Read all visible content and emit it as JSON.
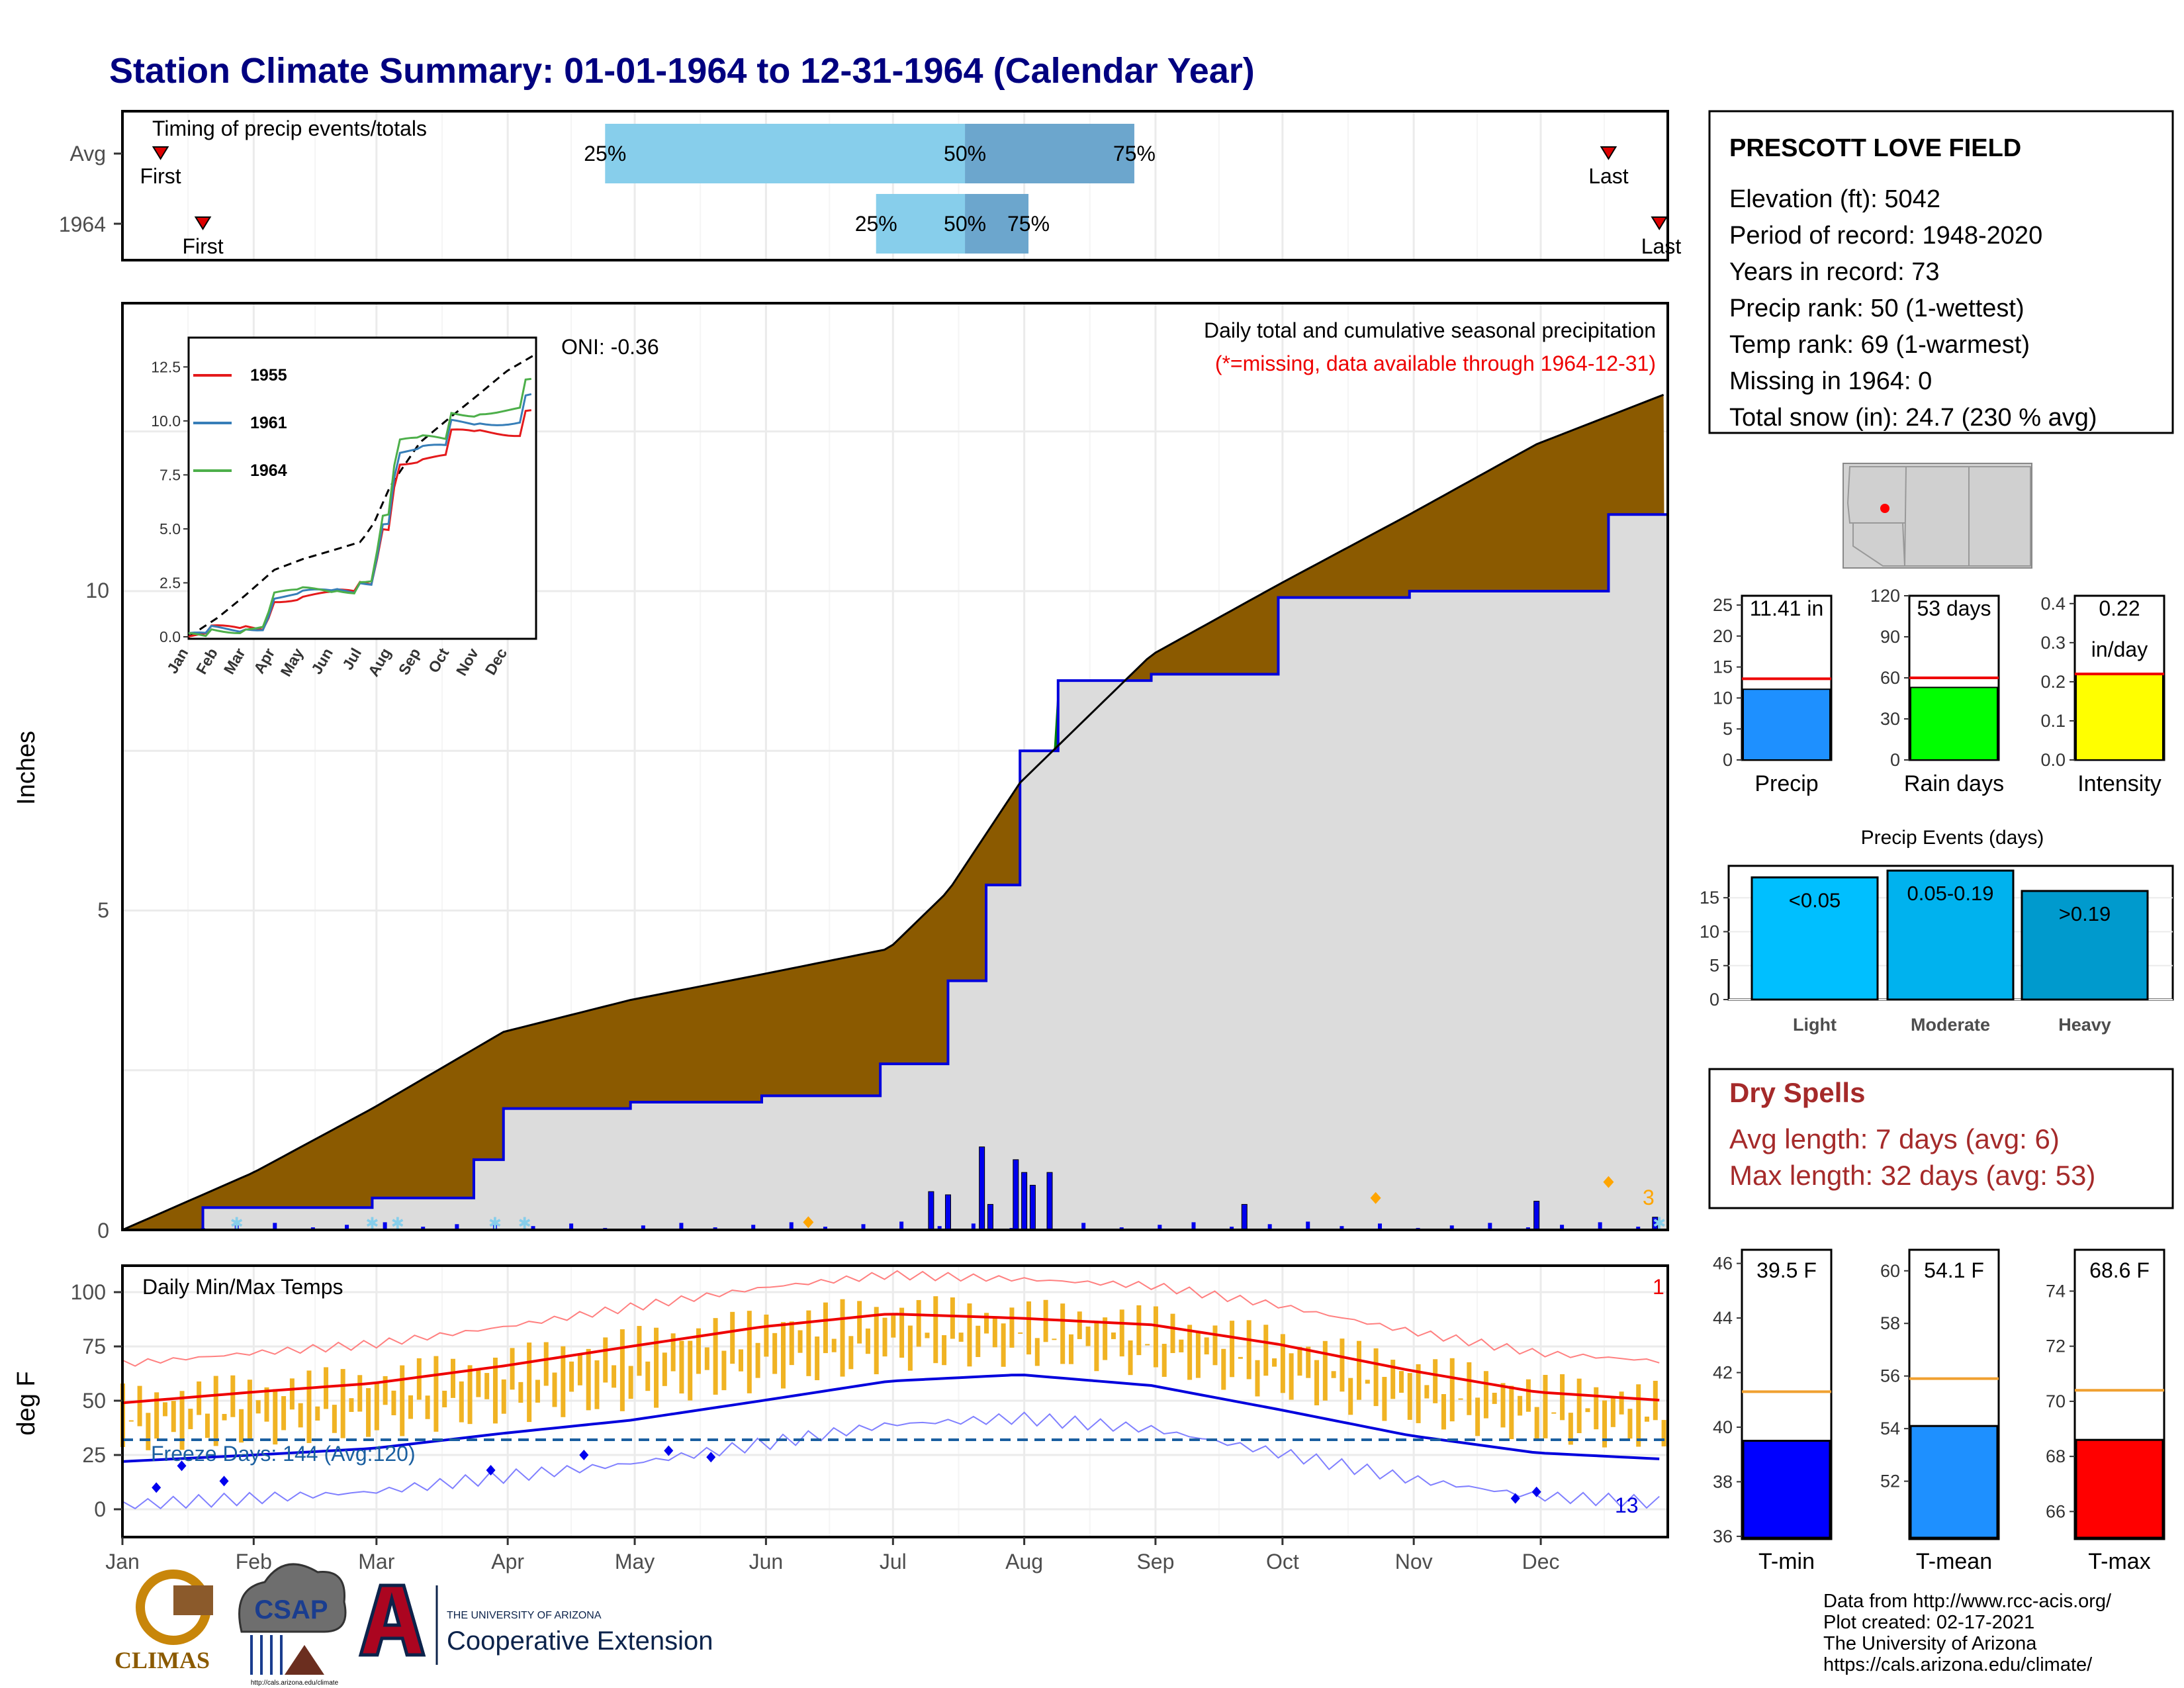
{
  "title": "Station Climate Summary: 01-01-1964 to 12-31-1964 (Calendar Year)",
  "timing": {
    "label": "Timing of precip events/totals",
    "rows": [
      {
        "name": "Avg",
        "first_label": "First",
        "last_label": "Last",
        "first_doy": 10,
        "last_doy": 352,
        "p25_doy": 115,
        "p50_doy": 200,
        "p75_doy": 240
      },
      {
        "name": "1964",
        "first_label": "First",
        "last_label": "Last",
        "first_doy": 20,
        "last_doy": 364,
        "p25_doy": 179,
        "p50_doy": 200,
        "p75_doy": 215
      }
    ],
    "pct_labels": [
      "25%",
      "50%",
      "75%"
    ],
    "colors": {
      "light": "#87ceeb",
      "dark": "#6ca6cd",
      "marker": "#dd0000"
    }
  },
  "station": {
    "name": "PRESCOTT LOVE FIELD",
    "lines": [
      "Elevation (ft): 5042",
      "Period of record: 1948-2020",
      "Years in record: 73",
      "Precip rank: 50 (1-wettest)",
      "Temp rank: 69 (1-warmest)",
      "Missing in 1964: 0",
      "Total snow (in): 24.7 (230 % avg)"
    ]
  },
  "precip_panel": {
    "title": "Daily total and cumulative seasonal precipitation",
    "subtitle": "(*=missing, data available through 1964-12-31)",
    "oni": "ONI: -0.36",
    "ylabel": "Inches",
    "yticks": [
      "0",
      "5",
      "10"
    ],
    "snow_count": "3",
    "colors": {
      "deficit": "#8b5a00",
      "surplus": "#008000",
      "observed": "#dcdcdc",
      "obs_line": "#0000dd",
      "bars": "#0000ee"
    }
  },
  "inset": {
    "yticks": [
      "0.0",
      "2.5",
      "5.0",
      "7.5",
      "10.0",
      "12.5"
    ],
    "months": [
      "Jan",
      "Feb",
      "Mar",
      "Apr",
      "May",
      "Jun",
      "Jul",
      "Aug",
      "Sep",
      "Oct",
      "Nov",
      "Dec"
    ],
    "legend": [
      {
        "name": "1955",
        "color": "#e41a1c"
      },
      {
        "name": "1961",
        "color": "#377eb8"
      },
      {
        "name": "1964",
        "color": "#4daf4a"
      }
    ]
  },
  "months": [
    "Jan",
    "Feb",
    "Mar",
    "Apr",
    "May",
    "Jun",
    "Jul",
    "Aug",
    "Sep",
    "Oct",
    "Nov",
    "Dec"
  ],
  "temp_panel": {
    "title": "Daily Min/Max Temps",
    "ylabel": "deg F",
    "yticks": [
      "0",
      "25",
      "50",
      "75",
      "100"
    ],
    "freeze": "Freeze Days: 144 (Avg:120)",
    "count_hot": "1",
    "count_cold": "13",
    "colors": {
      "range": "#f0b323",
      "max_avg": "#ee0000",
      "min_avg": "#0000dd",
      "freeze_line": "#1a5fa0"
    }
  },
  "precip_bars": {
    "panels": [
      {
        "label": "Precip",
        "value_label": "11.41 in",
        "value": 11.41,
        "avg": 13.1,
        "ymax": 26.5,
        "ticks": [
          "0",
          "5",
          "10",
          "15",
          "20",
          "25"
        ],
        "color": "#1e90ff"
      },
      {
        "label": "Rain days",
        "value_label": "53 days",
        "value": 53,
        "avg": 60,
        "ymax": 120,
        "ticks": [
          "0",
          "30",
          "60",
          "90",
          "120"
        ],
        "color": "#00ff00"
      },
      {
        "label": "Intensity",
        "value_label": "0.22",
        "value_label2": "in/day",
        "value": 0.22,
        "avg": 0.22,
        "ymax": 0.42,
        "ticks": [
          "0.0",
          "0.1",
          "0.2",
          "0.3",
          "0.4"
        ],
        "color": "#ffff00"
      }
    ]
  },
  "events": {
    "title": "Precip Events (days)",
    "categories": [
      "Light",
      "Moderate",
      "Heavy"
    ],
    "bar_labels": [
      "<0.05",
      "0.05-0.19",
      ">0.19"
    ],
    "values": [
      18,
      19,
      16
    ],
    "ticks": [
      "0",
      "5",
      "10",
      "15"
    ],
    "colors": [
      "#00bfff",
      "#00b2ee",
      "#009acd"
    ]
  },
  "dry_spells": {
    "title": "Dry Spells",
    "lines": [
      "Avg length: 7 days (avg: 6)",
      "Max length: 32 days (avg: 53)"
    ],
    "color": "#a52a2a"
  },
  "temp_bars": {
    "panels": [
      {
        "label": "T-min",
        "value_label": "39.5 F",
        "value": 39.5,
        "avg": 41.3,
        "ymin": 35.9,
        "ymax": 46.5,
        "ticks": [
          "36",
          "38",
          "40",
          "42",
          "44",
          "46"
        ],
        "color": "#0000ff"
      },
      {
        "label": "T-mean",
        "value_label": "54.1 F",
        "value": 54.1,
        "avg": 55.9,
        "ymin": 49.8,
        "ymax": 60.8,
        "ticks": [
          "52",
          "54",
          "56",
          "58",
          "60"
        ],
        "color": "#1e90ff"
      },
      {
        "label": "T-max",
        "value_label": "68.6 F",
        "value": 68.6,
        "avg": 70.4,
        "ymin": 65.0,
        "ymax": 75.5,
        "ticks": [
          "66",
          "68",
          "70",
          "72",
          "74"
        ],
        "color": "#ff0000"
      }
    ],
    "avg_color": "#f0a030"
  },
  "footer": {
    "lines": [
      "Data from http://www.rcc-acis.org/",
      "Plot created: 02-17-2021",
      "The University of Arizona",
      "https://cals.arizona.edu/climate/"
    ]
  },
  "logos": {
    "climas": "CLIMAS",
    "csap": "CSAP",
    "csap_url": "http://cals.arizona.edu/climate",
    "ua_small": "THE UNIVERSITY OF ARIZONA",
    "ua_big": "Cooperative Extension"
  },
  "chart_data": [
    {
      "type": "area",
      "title": "Daily total and cumulative seasonal precipitation",
      "ylabel": "Inches",
      "ylim": [
        0,
        13
      ],
      "x_unit": "day of year 1964",
      "average_cumulative": {
        "x": [
          1,
          32,
          60,
          91,
          121,
          152,
          182,
          196,
          213,
          244,
          274,
          305,
          335,
          366
        ],
        "y": [
          0,
          0.9,
          1.9,
          3.1,
          3.6,
          4.0,
          4.4,
          5.3,
          7.0,
          9.0,
          10.1,
          11.2,
          12.3,
          13.1
        ]
      },
      "observed_cumulative": {
        "x": [
          1,
          20,
          60,
          84,
          91,
          121,
          152,
          180,
          196,
          205,
          213,
          222,
          244,
          274,
          305,
          335,
          352,
          366
        ],
        "y": [
          0,
          0.35,
          0.5,
          1.1,
          1.9,
          2.0,
          2.1,
          2.6,
          3.9,
          5.4,
          7.5,
          8.6,
          8.7,
          9.9,
          10.0,
          10.0,
          11.2,
          11.41
        ]
      },
      "daily_large_events": {
        "x": [
          192,
          196,
          204,
          206,
          212,
          214,
          216,
          220,
          266,
          335,
          363
        ],
        "y": [
          0.6,
          0.55,
          1.3,
          0.4,
          1.1,
          0.9,
          0.7,
          0.9,
          0.4,
          0.45,
          0.2
        ]
      }
    },
    {
      "type": "line",
      "title": "Daily Min/Max Temps",
      "ylabel": "deg F",
      "ylim": [
        -10,
        110
      ],
      "freeze_threshold": 32,
      "series": [
        {
          "x": [
            1,
            32,
            60,
            91,
            121,
            152,
            182,
            213,
            244,
            274,
            305,
            335,
            366
          ],
          "y": [
            49,
            54,
            58,
            66,
            75,
            84,
            90,
            88,
            85,
            76,
            64,
            54,
            50
          ]
        },
        {
          "x": [
            1,
            32,
            60,
            91,
            121,
            152,
            182,
            213,
            244,
            274,
            305,
            335,
            366
          ],
          "y": [
            22,
            25,
            28,
            35,
            41,
            50,
            59,
            62,
            57,
            46,
            34,
            26,
            23
          ]
        }
      ]
    },
    {
      "type": "bar",
      "categories": [
        "Precip",
        "Rain days",
        "Intensity"
      ],
      "values": [
        11.41,
        53,
        0.22
      ]
    },
    {
      "type": "bar",
      "title": "Precip Events (days)",
      "categories": [
        "Light",
        "Moderate",
        "Heavy"
      ],
      "values": [
        18,
        19,
        16
      ]
    },
    {
      "type": "bar",
      "categories": [
        "T-min",
        "T-mean",
        "T-max"
      ],
      "values": [
        39.5,
        54.1,
        68.6
      ],
      "averages": [
        41.3,
        55.9,
        70.4
      ]
    }
  ]
}
